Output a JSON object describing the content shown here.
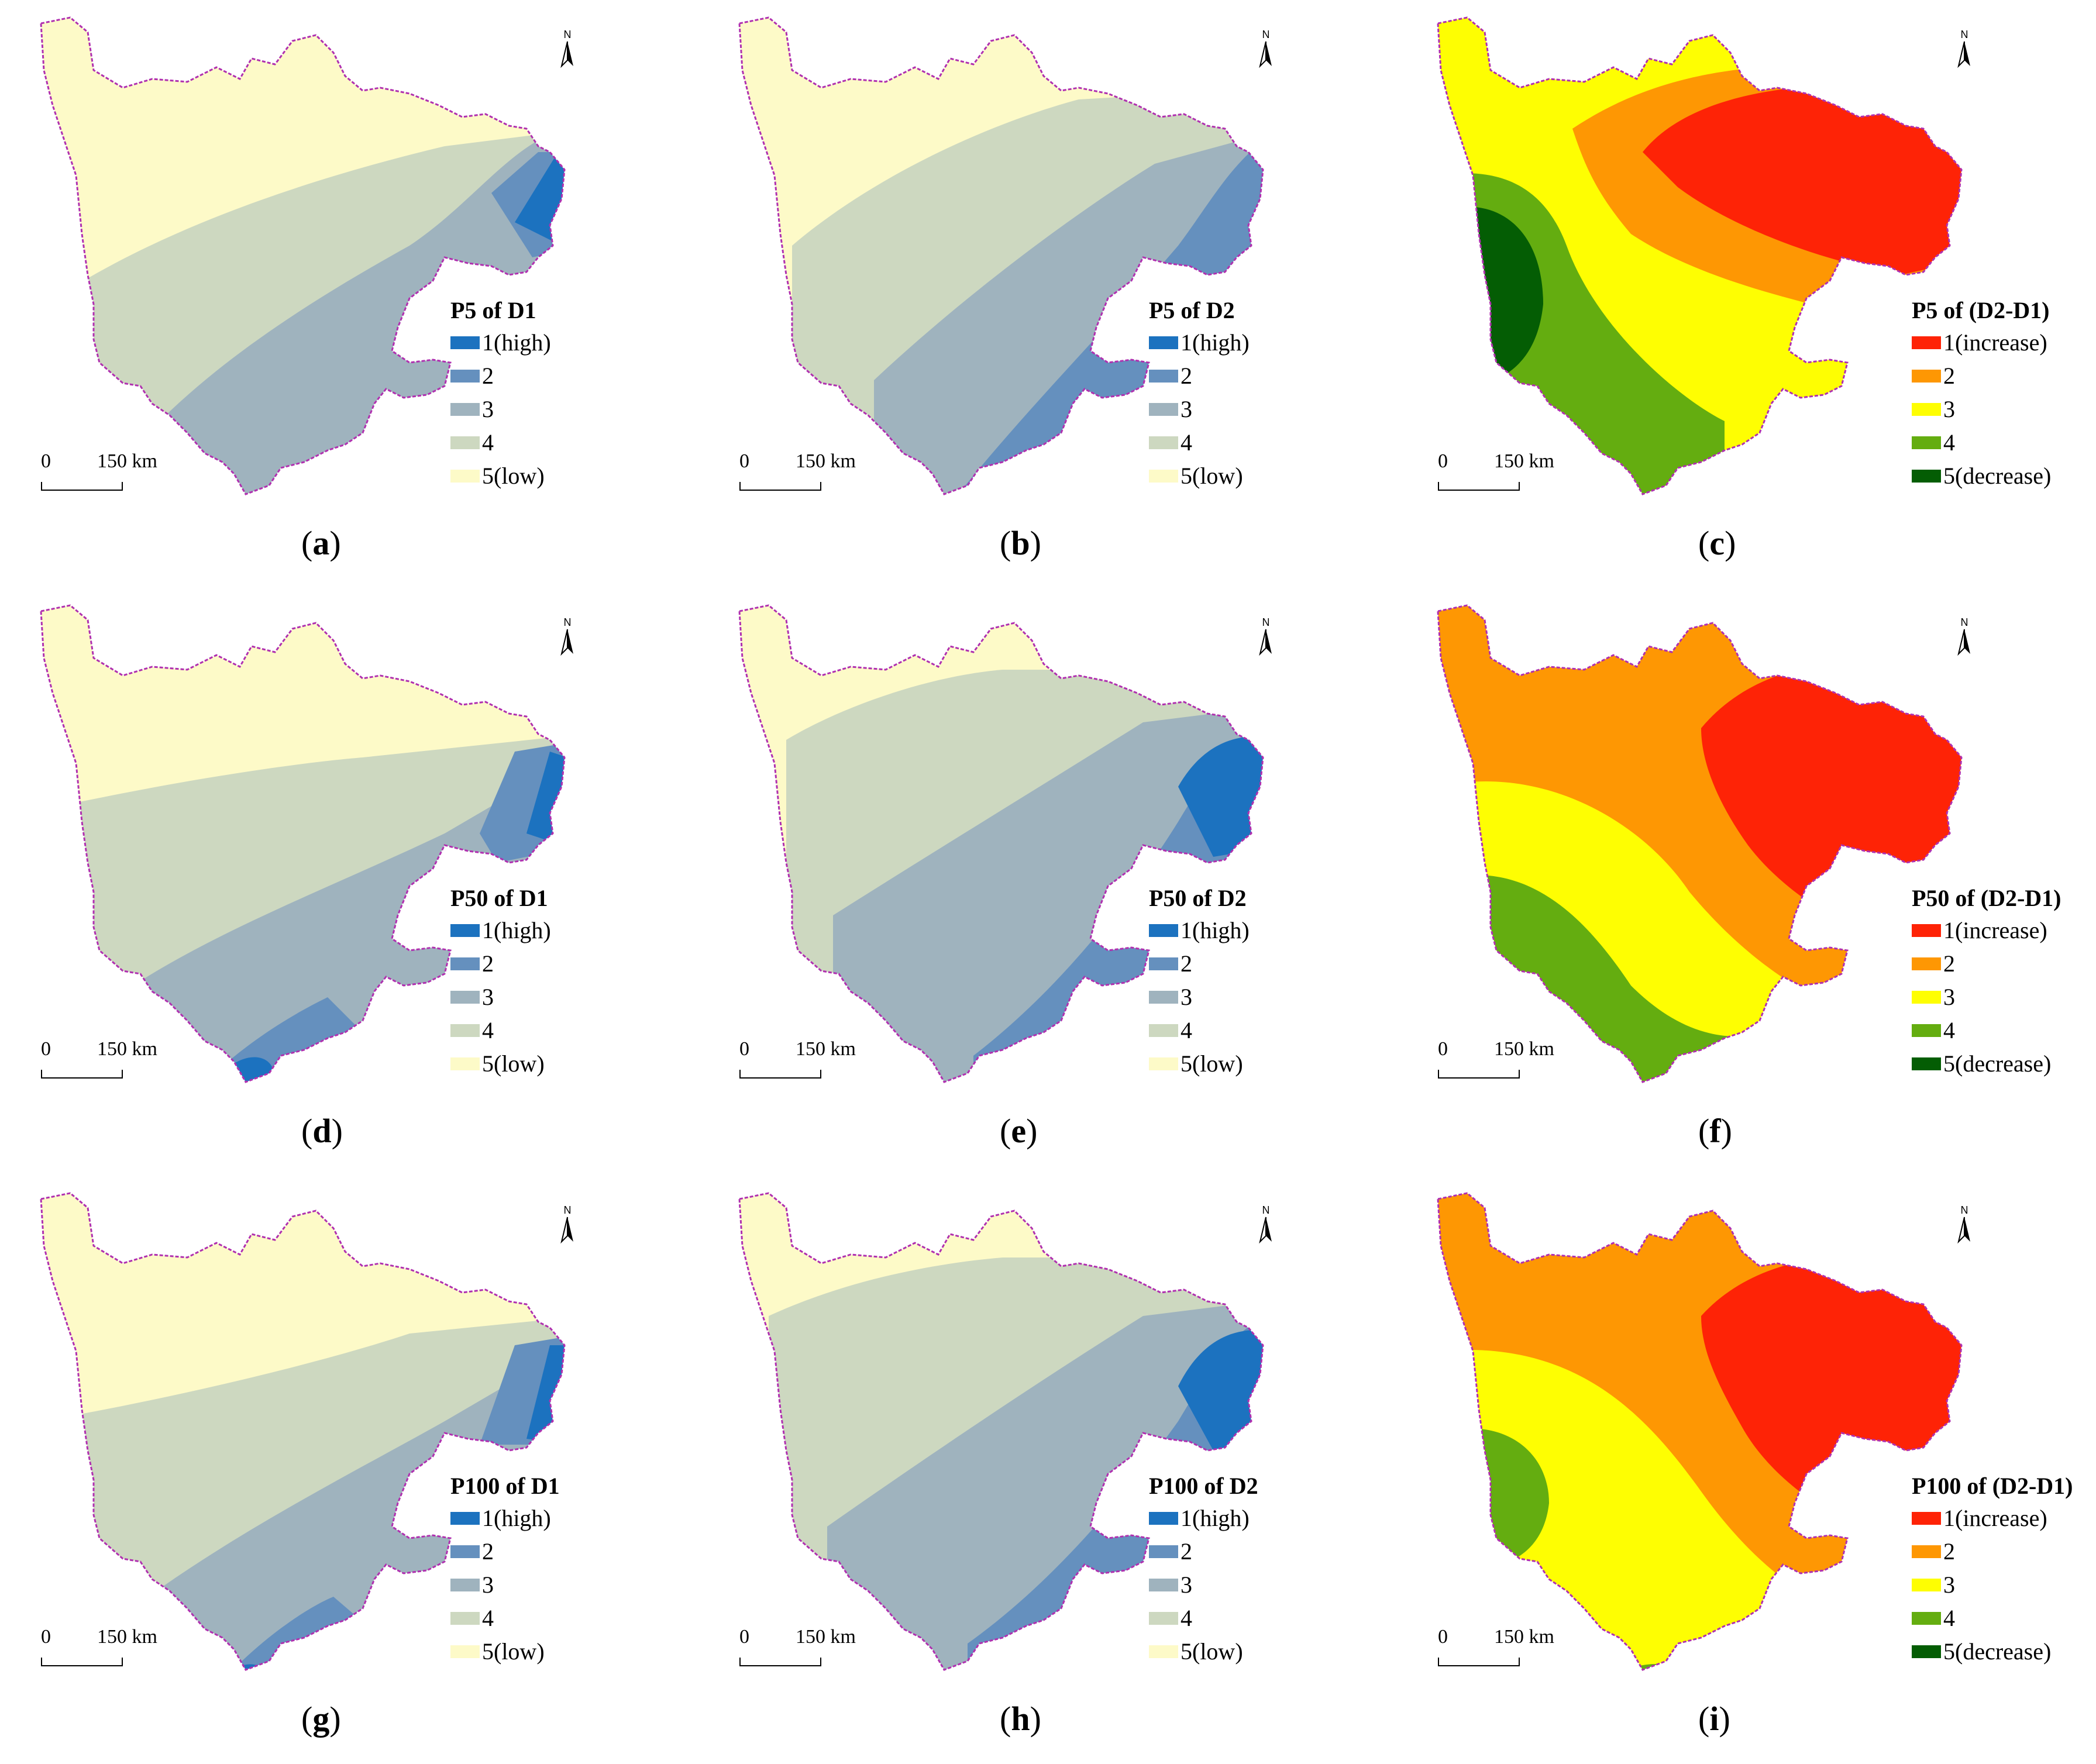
{
  "colors": {
    "blue_scale": [
      "#1c72bf",
      "#6590be",
      "#9fb3be",
      "#cdd8c0",
      "#fdfac8"
    ],
    "change_scale": [
      "#fe2306",
      "#fe9703",
      "#fefe02",
      "#64ad10",
      "#045d04"
    ],
    "boundary": "#b030b0"
  },
  "panels": [
    {
      "id": "a",
      "caption": "a",
      "legend_title": "P5 of D1",
      "scheme": "blue",
      "legend_labels": [
        "1(high)",
        "2",
        "3",
        "4",
        "5(low)"
      ]
    },
    {
      "id": "b",
      "caption": "b",
      "legend_title": "P5 of D2",
      "scheme": "blue",
      "legend_labels": [
        "1(high)",
        "2",
        "3",
        "4",
        "5(low)"
      ]
    },
    {
      "id": "c",
      "caption": "c",
      "legend_title": "P5 of (D2-D1)",
      "scheme": "change",
      "legend_labels": [
        "1(increase)",
        "2",
        "3",
        "4",
        "5(decrease)"
      ]
    },
    {
      "id": "d",
      "caption": "d",
      "legend_title": "P50 of D1",
      "scheme": "blue",
      "legend_labels": [
        "1(high)",
        "2",
        "3",
        "4",
        "5(low)"
      ]
    },
    {
      "id": "e",
      "caption": "e",
      "legend_title": "P50 of D2",
      "scheme": "blue",
      "legend_labels": [
        "1(high)",
        "2",
        "3",
        "4",
        "5(low)"
      ]
    },
    {
      "id": "f",
      "caption": "f",
      "legend_title": "P50 of (D2-D1)",
      "scheme": "change",
      "legend_labels": [
        "1(increase)",
        "2",
        "3",
        "4",
        "5(decrease)"
      ]
    },
    {
      "id": "g",
      "caption": "g",
      "legend_title": "P100 of D1",
      "scheme": "blue",
      "legend_labels": [
        "1(high)",
        "2",
        "3",
        "4",
        "5(low)"
      ]
    },
    {
      "id": "h",
      "caption": "h",
      "legend_title": "P100 of D2",
      "scheme": "blue",
      "legend_labels": [
        "1(high)",
        "2",
        "3",
        "4",
        "5(low)"
      ]
    },
    {
      "id": "i",
      "caption": "i",
      "legend_title": "P100 of (D2-D1)",
      "scheme": "change",
      "legend_labels": [
        "1(increase)",
        "2",
        "3",
        "4",
        "5(decrease)"
      ]
    }
  ],
  "scalebar": {
    "zero": "0",
    "text": "150 km"
  },
  "north_label": "N"
}
